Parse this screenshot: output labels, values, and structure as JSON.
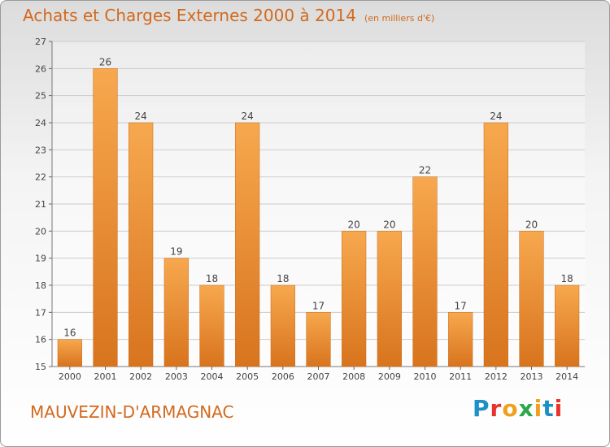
{
  "header": {
    "title": "Achats et Charges Externes 2000 à 2014",
    "unit": "(en milliers d'€)"
  },
  "footer": {
    "city": "MAUVEZIN-D'ARMAGNAC",
    "logo": "Proxiti",
    "logo_colors": [
      "#1e90c8",
      "#e8322a",
      "#f0a020",
      "#2aa84a",
      "#f0a020",
      "#1e90c8",
      "#e8322a"
    ]
  },
  "colors": {
    "bar_light": "#f7a84e",
    "bar_dark": "#d8741e",
    "text_accent": "#d2691e",
    "grid": "#cccccc"
  },
  "chart_data": {
    "type": "bar",
    "title": "Achats et Charges Externes 2000 à 2014",
    "xlabel": "",
    "ylabel": "",
    "ylim": [
      15,
      27
    ],
    "yticks": [
      15,
      16,
      17,
      18,
      19,
      20,
      21,
      22,
      23,
      24,
      25,
      26,
      27
    ],
    "grid": true,
    "categories": [
      "2000",
      "2001",
      "2002",
      "2003",
      "2004",
      "2005",
      "2006",
      "2007",
      "2008",
      "2009",
      "2010",
      "2011",
      "2012",
      "2013",
      "2014"
    ],
    "values": [
      16,
      26,
      24,
      19,
      18,
      24,
      18,
      17,
      20,
      20,
      22,
      17,
      24,
      20,
      18
    ]
  }
}
